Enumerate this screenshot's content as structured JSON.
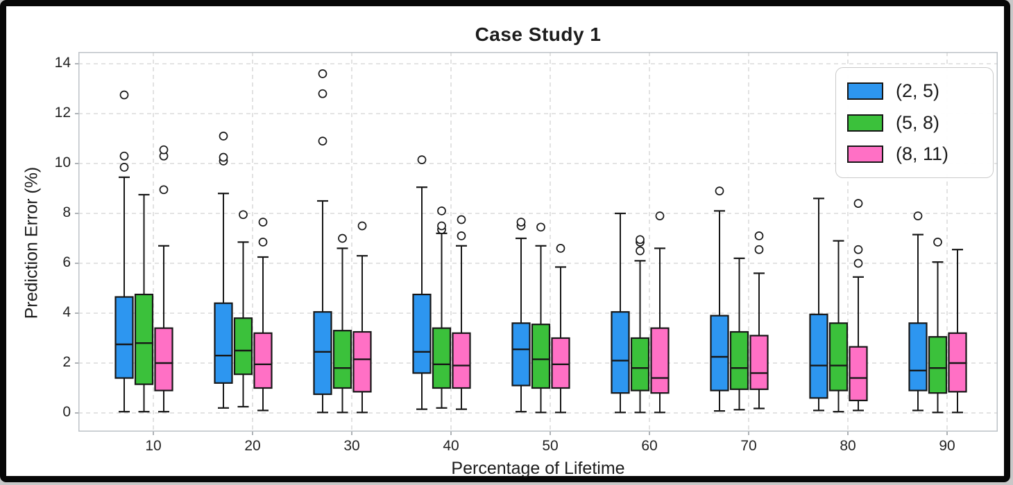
{
  "figure": {
    "title": "Case Study 1",
    "xlabel": "Percentage of Lifetime",
    "ylabel": "Prediction Error (%)"
  },
  "chart_data": {
    "type": "boxplot-grouped",
    "title": "Case Study 1",
    "xlabel": "Percentage of Lifetime",
    "ylabel": "Prediction Error (%)",
    "categories": [
      10,
      20,
      30,
      40,
      50,
      60,
      70,
      80,
      90
    ],
    "y_ticks": [
      0,
      2,
      4,
      6,
      8,
      10,
      12,
      14
    ],
    "ylim": [
      -0.75,
      14.47
    ],
    "grid": true,
    "legend_position": "upper right",
    "series": [
      {
        "name": "(2, 5)",
        "color": "#2D96F0",
        "boxes": [
          {
            "lo": 0.05,
            "q1": 1.4,
            "med": 2.75,
            "q3": 4.65,
            "hi": 9.45,
            "fliers": [
              9.85,
              10.3,
              12.75
            ]
          },
          {
            "lo": 0.2,
            "q1": 1.2,
            "med": 2.3,
            "q3": 4.4,
            "hi": 8.8,
            "fliers": [
              10.1,
              10.25,
              11.1
            ]
          },
          {
            "lo": 0.02,
            "q1": 0.75,
            "med": 2.45,
            "q3": 4.05,
            "hi": 8.5,
            "fliers": [
              10.9,
              12.8,
              13.6
            ]
          },
          {
            "lo": 0.15,
            "q1": 1.6,
            "med": 2.45,
            "q3": 4.75,
            "hi": 9.05,
            "fliers": [
              10.15
            ]
          },
          {
            "lo": 0.05,
            "q1": 1.1,
            "med": 2.55,
            "q3": 3.6,
            "hi": 7.0,
            "fliers": [
              7.5,
              7.65
            ]
          },
          {
            "lo": 0.02,
            "q1": 0.8,
            "med": 2.1,
            "q3": 4.05,
            "hi": 8.0,
            "fliers": []
          },
          {
            "lo": 0.08,
            "q1": 0.9,
            "med": 2.25,
            "q3": 3.9,
            "hi": 8.1,
            "fliers": [
              8.9
            ]
          },
          {
            "lo": 0.1,
            "q1": 0.6,
            "med": 1.9,
            "q3": 3.95,
            "hi": 8.6,
            "fliers": []
          },
          {
            "lo": 0.1,
            "q1": 0.9,
            "med": 1.7,
            "q3": 3.6,
            "hi": 7.15,
            "fliers": [
              7.9
            ]
          }
        ]
      },
      {
        "name": "(5, 8)",
        "color": "#3BC13B",
        "boxes": [
          {
            "lo": 0.05,
            "q1": 1.15,
            "med": 2.8,
            "q3": 4.75,
            "hi": 8.75,
            "fliers": []
          },
          {
            "lo": 0.25,
            "q1": 1.55,
            "med": 2.5,
            "q3": 3.8,
            "hi": 6.85,
            "fliers": [
              7.95
            ]
          },
          {
            "lo": 0.02,
            "q1": 1.0,
            "med": 1.8,
            "q3": 3.3,
            "hi": 6.6,
            "fliers": [
              7.0
            ]
          },
          {
            "lo": 0.2,
            "q1": 1.0,
            "med": 1.95,
            "q3": 3.4,
            "hi": 7.2,
            "fliers": [
              7.35,
              7.5,
              8.1
            ]
          },
          {
            "lo": 0.02,
            "q1": 1.0,
            "med": 2.15,
            "q3": 3.55,
            "hi": 6.7,
            "fliers": [
              7.45
            ]
          },
          {
            "lo": 0.02,
            "q1": 0.9,
            "med": 1.8,
            "q3": 3.0,
            "hi": 6.1,
            "fliers": [
              6.5,
              6.85,
              6.95
            ]
          },
          {
            "lo": 0.13,
            "q1": 0.95,
            "med": 1.8,
            "q3": 3.25,
            "hi": 6.2,
            "fliers": []
          },
          {
            "lo": 0.05,
            "q1": 0.9,
            "med": 1.9,
            "q3": 3.6,
            "hi": 6.9,
            "fliers": []
          },
          {
            "lo": 0.02,
            "q1": 0.8,
            "med": 1.8,
            "q3": 3.05,
            "hi": 6.05,
            "fliers": [
              6.85
            ]
          }
        ]
      },
      {
        "name": "(8, 11)",
        "color": "#FF70C5",
        "boxes": [
          {
            "lo": 0.05,
            "q1": 0.9,
            "med": 2.0,
            "q3": 3.4,
            "hi": 6.7,
            "fliers": [
              8.95,
              10.3,
              10.55
            ]
          },
          {
            "lo": 0.1,
            "q1": 1.0,
            "med": 1.95,
            "q3": 3.2,
            "hi": 6.25,
            "fliers": [
              6.85,
              7.65
            ]
          },
          {
            "lo": 0.02,
            "q1": 0.85,
            "med": 2.15,
            "q3": 3.25,
            "hi": 6.3,
            "fliers": [
              7.5
            ]
          },
          {
            "lo": 0.15,
            "q1": 1.0,
            "med": 1.9,
            "q3": 3.2,
            "hi": 6.7,
            "fliers": [
              7.1,
              7.75
            ]
          },
          {
            "lo": 0.02,
            "q1": 1.0,
            "med": 1.95,
            "q3": 3.0,
            "hi": 5.85,
            "fliers": [
              6.6
            ]
          },
          {
            "lo": 0.02,
            "q1": 0.8,
            "med": 1.4,
            "q3": 3.4,
            "hi": 6.6,
            "fliers": [
              7.9
            ]
          },
          {
            "lo": 0.18,
            "q1": 0.95,
            "med": 1.6,
            "q3": 3.1,
            "hi": 5.6,
            "fliers": [
              6.55,
              7.1
            ]
          },
          {
            "lo": 0.1,
            "q1": 0.5,
            "med": 1.4,
            "q3": 2.65,
            "hi": 5.45,
            "fliers": [
              6.0,
              6.55,
              8.4
            ]
          },
          {
            "lo": 0.02,
            "q1": 0.85,
            "med": 2.0,
            "q3": 3.2,
            "hi": 6.55,
            "fliers": []
          }
        ]
      }
    ],
    "style": {
      "box_edge_color": "#161616",
      "grid_color": "#d2d2d2",
      "spine_color": "#bcc2c7",
      "flier_fill": "#ffffff"
    }
  }
}
